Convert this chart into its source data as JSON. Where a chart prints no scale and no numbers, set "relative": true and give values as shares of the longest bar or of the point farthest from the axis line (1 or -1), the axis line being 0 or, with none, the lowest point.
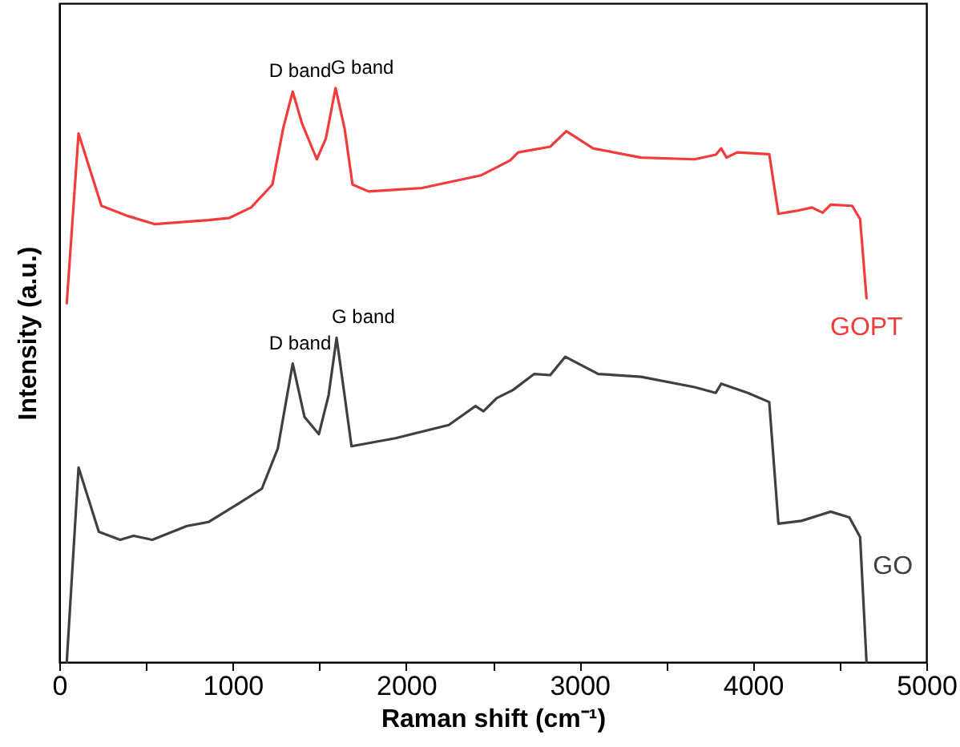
{
  "chart_data": {
    "type": "line",
    "relative": true,
    "xlabel": "Raman shift (cm⁻¹)",
    "ylabel": "Intensity (a.u.)",
    "xlim": [
      0,
      5000
    ],
    "xticks": [
      0,
      {
        "value": 500,
        "label": null
      },
      1000,
      {
        "value": 1500,
        "label": null
      },
      2000,
      {
        "value": 2500,
        "label": null
      },
      3000,
      {
        "value": 3500,
        "label": null
      },
      4000,
      {
        "value": 4500,
        "label": null
      },
      5000
    ],
    "grid": false,
    "marker": "none",
    "line_style": "solid",
    "annotations": [
      {
        "text": "D band",
        "x": 1346,
        "y": 0.994
      },
      {
        "text": "G band",
        "x": 1593,
        "y": 1.0
      },
      {
        "text": "D band",
        "x": 1346,
        "y": 0.52
      },
      {
        "text": "G band",
        "x": 1599,
        "y": 0.565
      }
    ],
    "series": [
      {
        "name": "GOPT",
        "color": "#f23c3c",
        "x": [
          43,
          111,
          243,
          397,
          552,
          860,
          982,
          1106,
          1229,
          1291,
          1346,
          1399,
          1485,
          1537,
          1593,
          1645,
          1691,
          1784,
          2092,
          2400,
          2431,
          2600,
          2646,
          2831,
          2924,
          3078,
          3355,
          3663,
          3786,
          3817,
          3848,
          3909,
          4094,
          4147,
          4248,
          4341,
          4402,
          4448,
          4572,
          4618,
          4655
        ],
        "values": [
          0.625,
          0.921,
          0.795,
          0.777,
          0.763,
          0.77,
          0.774,
          0.792,
          0.832,
          0.93,
          0.994,
          0.939,
          0.876,
          0.912,
          1.0,
          0.93,
          0.832,
          0.82,
          0.826,
          0.846,
          0.848,
          0.874,
          0.888,
          0.898,
          0.925,
          0.895,
          0.879,
          0.876,
          0.884,
          0.895,
          0.879,
          0.888,
          0.885,
          0.781,
          0.786,
          0.792,
          0.783,
          0.797,
          0.795,
          0.772,
          0.634
        ]
      },
      {
        "name": "GO",
        "color": "#404040",
        "x": [
          43,
          111,
          228,
          351,
          428,
          536,
          736,
          860,
          1044,
          1168,
          1260,
          1346,
          1414,
          1497,
          1553,
          1599,
          1645,
          1685,
          1938,
          2246,
          2400,
          2446,
          2523,
          2616,
          2739,
          2831,
          2918,
          3108,
          3355,
          3663,
          3786,
          3817,
          3971,
          4094,
          4147,
          4279,
          4448,
          4556,
          4618,
          4655
        ],
        "values": [
          0,
          0.339,
          0.227,
          0.213,
          0.22,
          0.213,
          0.237,
          0.244,
          0.278,
          0.302,
          0.372,
          0.52,
          0.427,
          0.397,
          0.465,
          0.565,
          0.465,
          0.376,
          0.39,
          0.413,
          0.446,
          0.437,
          0.46,
          0.474,
          0.502,
          0.5,
          0.532,
          0.502,
          0.497,
          0.479,
          0.469,
          0.485,
          0.469,
          0.453,
          0.241,
          0.246,
          0.262,
          0.252,
          0.218,
          0
        ]
      }
    ]
  }
}
